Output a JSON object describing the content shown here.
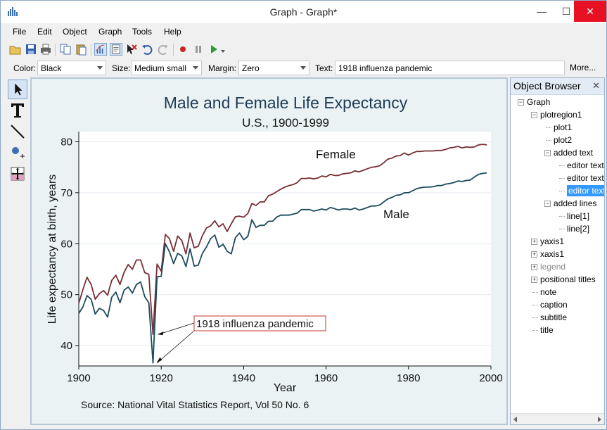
{
  "window": {
    "title": "Graph - Graph*"
  },
  "menu": [
    "File",
    "Edit",
    "Object",
    "Graph",
    "Tools",
    "Help"
  ],
  "toolbar": {
    "icons": [
      "open-icon",
      "save-icon",
      "print-icon",
      "copy-icon",
      "paste-icon",
      "graph-editor-icon",
      "object-browser-icon",
      "clear-icon",
      "undo-icon",
      "redo-icon",
      "record-icon",
      "pause-icon",
      "play-icon",
      "dropdown-icon"
    ]
  },
  "props": {
    "color_label": "Color:",
    "color_value": "Black",
    "size_label": "Size:",
    "size_value": "Medium small",
    "margin_label": "Margin:",
    "margin_value": "Zero",
    "text_label": "Text:",
    "text_value": "1918 influenza pandemic",
    "more_label": "More..."
  },
  "tools": [
    "pointer-tool-icon",
    "text-tool-icon",
    "line-tool-icon",
    "marker-tool-icon",
    "grid-edit-tool-icon"
  ],
  "chart_data": {
    "type": "line",
    "title": "Male and Female Life Expectancy",
    "subtitle": "U.S., 1900-1999",
    "xlabel": "Year",
    "ylabel": "Life expectancy at birth, years",
    "note": "Source: National Vital Statistics Report, Vol 50 No. 6",
    "xlim": [
      1900,
      2000
    ],
    "ylim": [
      36,
      82
    ],
    "xticks": [
      "1900",
      "1920",
      "1940",
      "1960",
      "1980",
      "2000"
    ],
    "yticks": [
      "40",
      "50",
      "60",
      "70",
      "80"
    ],
    "labels": {
      "female": "Female",
      "male": "Male"
    },
    "annotation": "1918 influenza pandemic",
    "colors": {
      "female": "#7a2e35",
      "male": "#1d4a5e",
      "bg": "#eaf2f3",
      "plot_bg": "#ffffff",
      "annotation_border": "#c0392b"
    },
    "series": [
      {
        "name": "Female",
        "x": [
          1900,
          1901,
          1902,
          1903,
          1904,
          1905,
          1906,
          1907,
          1908,
          1909,
          1910,
          1911,
          1912,
          1913,
          1914,
          1915,
          1916,
          1917,
          1918,
          1919,
          1920,
          1921,
          1922,
          1923,
          1924,
          1925,
          1926,
          1927,
          1928,
          1929,
          1930,
          1931,
          1932,
          1933,
          1934,
          1935,
          1936,
          1937,
          1938,
          1939,
          1940,
          1941,
          1942,
          1943,
          1944,
          1945,
          1946,
          1947,
          1948,
          1949,
          1950,
          1951,
          1952,
          1953,
          1954,
          1955,
          1956,
          1957,
          1958,
          1959,
          1960,
          1961,
          1962,
          1963,
          1964,
          1965,
          1966,
          1967,
          1968,
          1969,
          1970,
          1971,
          1972,
          1973,
          1974,
          1975,
          1976,
          1977,
          1978,
          1979,
          1980,
          1981,
          1982,
          1983,
          1984,
          1985,
          1986,
          1987,
          1988,
          1989,
          1990,
          1991,
          1992,
          1993,
          1994,
          1995,
          1996,
          1997,
          1998,
          1999
        ],
        "values": [
          48.3,
          51.0,
          53.4,
          52.0,
          49.1,
          50.2,
          50.8,
          49.9,
          52.8,
          53.8,
          52.0,
          54.4,
          55.9,
          55.0,
          56.8,
          56.8,
          54.3,
          54.0,
          42.2,
          56.0,
          54.6,
          61.8,
          61.0,
          58.5,
          61.5,
          60.6,
          58.0,
          62.1,
          59.2,
          59.5,
          61.6,
          63.1,
          63.5,
          64.5,
          63.3,
          63.9,
          62.4,
          63.9,
          65.3,
          65.4,
          65.2,
          65.9,
          67.9,
          67.5,
          68.2,
          68.2,
          69.4,
          69.7,
          70.2,
          70.7,
          71.1,
          71.4,
          71.6,
          72.0,
          72.8,
          72.8,
          72.9,
          72.7,
          72.9,
          73.3,
          73.1,
          73.6,
          73.4,
          73.4,
          73.7,
          73.8,
          73.9,
          74.3,
          74.1,
          74.4,
          74.7,
          75.0,
          75.1,
          75.3,
          75.9,
          76.6,
          76.8,
          77.2,
          77.3,
          77.8,
          77.4,
          77.8,
          78.1,
          78.1,
          78.2,
          78.2,
          78.2,
          78.3,
          78.3,
          78.5,
          78.8,
          78.9,
          79.1,
          78.8,
          79.0,
          78.9,
          79.0,
          79.4,
          79.5,
          79.4
        ]
      },
      {
        "name": "Male",
        "x": [
          1900,
          1901,
          1902,
          1903,
          1904,
          1905,
          1906,
          1907,
          1908,
          1909,
          1910,
          1911,
          1912,
          1913,
          1914,
          1915,
          1916,
          1917,
          1918,
          1919,
          1920,
          1921,
          1922,
          1923,
          1924,
          1925,
          1926,
          1927,
          1928,
          1929,
          1930,
          1931,
          1932,
          1933,
          1934,
          1935,
          1936,
          1937,
          1938,
          1939,
          1940,
          1941,
          1942,
          1943,
          1944,
          1945,
          1946,
          1947,
          1948,
          1949,
          1950,
          1951,
          1952,
          1953,
          1954,
          1955,
          1956,
          1957,
          1958,
          1959,
          1960,
          1961,
          1962,
          1963,
          1964,
          1965,
          1966,
          1967,
          1968,
          1969,
          1970,
          1971,
          1972,
          1973,
          1974,
          1975,
          1976,
          1977,
          1978,
          1979,
          1980,
          1981,
          1982,
          1983,
          1984,
          1985,
          1986,
          1987,
          1988,
          1989,
          1990,
          1991,
          1992,
          1993,
          1994,
          1995,
          1996,
          1997,
          1998,
          1999
        ],
        "values": [
          46.3,
          47.6,
          49.8,
          49.1,
          46.2,
          47.3,
          46.9,
          45.6,
          49.5,
          50.5,
          48.4,
          50.9,
          51.5,
          50.3,
          52.0,
          52.5,
          49.6,
          48.4,
          36.6,
          53.5,
          53.6,
          60.0,
          58.4,
          56.1,
          58.1,
          57.6,
          55.5,
          59.0,
          55.6,
          55.8,
          58.1,
          59.4,
          61.0,
          61.7,
          59.3,
          59.9,
          58.5,
          58.0,
          61.2,
          62.1,
          60.8,
          61.4,
          64.7,
          63.2,
          63.6,
          63.6,
          64.4,
          64.4,
          65.2,
          65.6,
          65.6,
          65.6,
          65.8,
          66.0,
          66.7,
          66.7,
          66.7,
          66.4,
          66.6,
          66.8,
          66.6,
          67.1,
          66.9,
          66.6,
          66.8,
          66.8,
          66.7,
          67.0,
          66.6,
          66.8,
          67.1,
          67.4,
          67.4,
          67.6,
          68.2,
          68.8,
          69.1,
          69.5,
          69.6,
          70.0,
          70.0,
          70.4,
          70.8,
          71.0,
          71.1,
          71.1,
          71.2,
          71.4,
          71.4,
          71.7,
          71.8,
          72.0,
          72.3,
          72.2,
          72.4,
          72.5,
          73.1,
          73.6,
          73.8,
          73.9
        ]
      }
    ]
  },
  "object_browser": {
    "title": "Object Browser",
    "close_label": "✕",
    "nodes": [
      {
        "label": "Graph",
        "depth": 0,
        "exp": "-"
      },
      {
        "label": "plotregion1",
        "depth": 1,
        "exp": "-"
      },
      {
        "label": "plot1",
        "depth": 2,
        "exp": ""
      },
      {
        "label": "plot2",
        "depth": 2,
        "exp": ""
      },
      {
        "label": "added text",
        "depth": 2,
        "exp": "-"
      },
      {
        "label": "editor text",
        "depth": 3,
        "exp": ""
      },
      {
        "label": "editor text",
        "depth": 3,
        "exp": ""
      },
      {
        "label": "editor text",
        "depth": 3,
        "exp": "",
        "selected": true
      },
      {
        "label": "added lines",
        "depth": 2,
        "exp": "-"
      },
      {
        "label": "line[1]",
        "depth": 3,
        "exp": ""
      },
      {
        "label": "line[2]",
        "depth": 3,
        "exp": ""
      },
      {
        "label": "yaxis1",
        "depth": 1,
        "exp": "+"
      },
      {
        "label": "xaxis1",
        "depth": 1,
        "exp": "+"
      },
      {
        "label": "legend",
        "depth": 1,
        "exp": "+",
        "grey": true
      },
      {
        "label": "positional titles",
        "depth": 1,
        "exp": "+"
      },
      {
        "label": "note",
        "depth": 1,
        "exp": ""
      },
      {
        "label": "caption",
        "depth": 1,
        "exp": ""
      },
      {
        "label": "subtitle",
        "depth": 1,
        "exp": ""
      },
      {
        "label": "title",
        "depth": 1,
        "exp": ""
      }
    ]
  }
}
